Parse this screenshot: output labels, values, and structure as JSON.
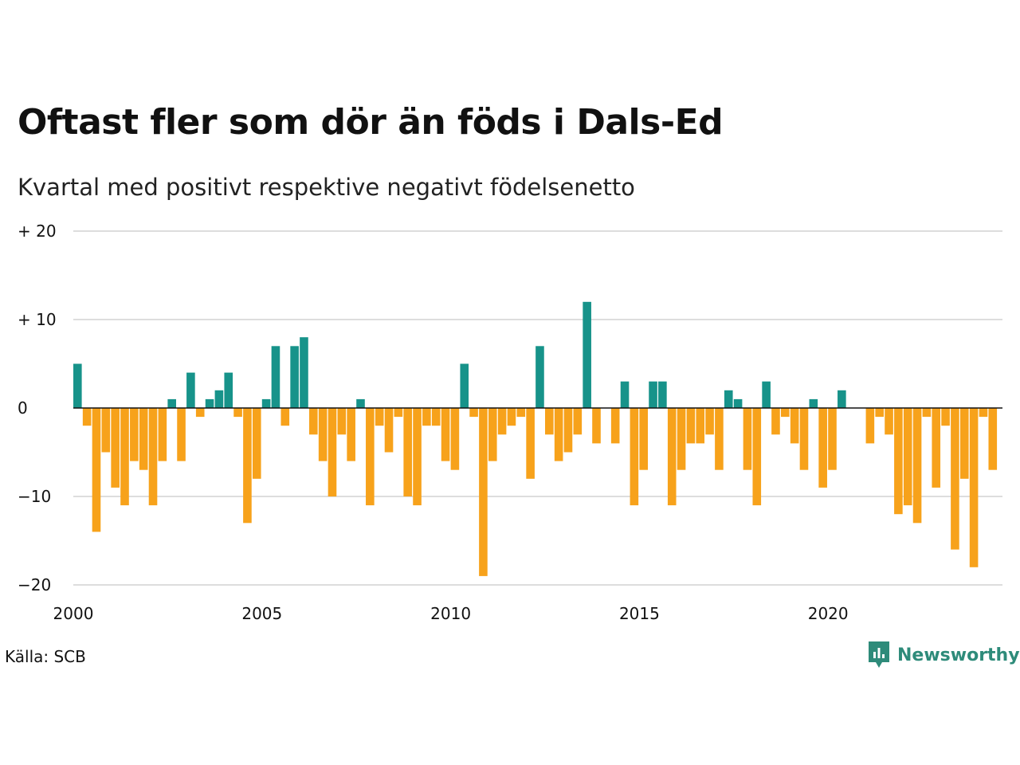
{
  "title": "Oftast fler som dör än föds i Dals-Ed",
  "subtitle": "Kvartal med positivt respektive negativt födelsenetto",
  "source": "Källa: SCB",
  "brand": {
    "name": "Newsworthy",
    "icon": "newsworthy-logo-icon"
  },
  "colors": {
    "positive": "#17938a",
    "negative": "#f7a21b",
    "grid": "#dddddd",
    "zero_line": "#111111",
    "brand": "#2e8b7a"
  },
  "chart_data": {
    "type": "bar",
    "title": "Oftast fler som dör än föds i Dals-Ed",
    "subtitle": "Kvartal med positivt respektive negativt födelsenetto",
    "xlabel": "",
    "ylabel": "",
    "x_start": 2000,
    "periods_per_year": 4,
    "ylim": [
      -20,
      20
    ],
    "yticks": [
      20,
      10,
      0,
      -10,
      -20
    ],
    "ytick_labels": [
      "+ 20",
      "+ 10",
      "0",
      "−10",
      "−20"
    ],
    "xticks": [
      2000,
      2005,
      2010,
      2015,
      2020
    ],
    "xtick_labels": [
      "2000",
      "2005",
      "2010",
      "2015",
      "2020"
    ],
    "grid": true,
    "legend": "none",
    "values": [
      5,
      -2,
      -14,
      -5,
      -9,
      -11,
      -6,
      -7,
      -11,
      -6,
      1,
      -6,
      4,
      -1,
      1,
      2,
      4,
      -1,
      -13,
      -8,
      1,
      7,
      -2,
      7,
      8,
      -3,
      -6,
      -10,
      -3,
      -6,
      1,
      -11,
      -2,
      -5,
      -1,
      -10,
      -11,
      -2,
      -2,
      -6,
      -7,
      5,
      -1,
      -19,
      -6,
      -3,
      -2,
      -1,
      -8,
      7,
      -3,
      -6,
      -5,
      -3,
      12,
      -4,
      0,
      -4,
      3,
      -11,
      -7,
      3,
      3,
      -11,
      -7,
      -4,
      -4,
      -3,
      -7,
      2,
      1,
      -7,
      -11,
      3,
      -3,
      -1,
      -4,
      -7,
      1,
      -9,
      -7,
      2,
      0,
      0,
      -4,
      -1,
      -3,
      -12,
      -11,
      -13,
      -1,
      -9,
      -2,
      -16,
      -8,
      -18,
      -1,
      -7
    ]
  }
}
